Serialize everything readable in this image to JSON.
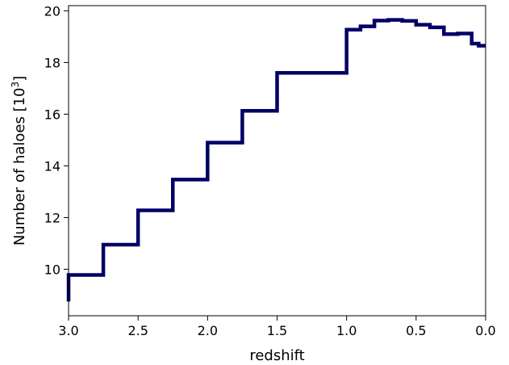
{
  "chart_data": {
    "type": "line",
    "subtype": "step",
    "xlabel": "redshift",
    "ylabel": {
      "prefix": "Number of haloes [10",
      "superscript": "3",
      "suffix": "]"
    },
    "xlim": [
      3.0,
      0.0
    ],
    "ylim": [
      8.2,
      20.2
    ],
    "x_inverted": true,
    "grid": false,
    "legend": "none",
    "x_ticks": [
      3.0,
      2.5,
      2.0,
      1.5,
      1.0,
      0.5,
      0.0
    ],
    "x_tick_labels": [
      "3.0",
      "2.5",
      "2.0",
      "1.5",
      "1.0",
      "0.5",
      "0.0"
    ],
    "y_ticks": [
      10,
      12,
      14,
      16,
      18,
      20
    ],
    "y_tick_labels": [
      "10",
      "12",
      "14",
      "16",
      "18",
      "20"
    ],
    "line_color": "#000066",
    "series": [
      {
        "x": [
          3.0,
          2.75,
          2.5,
          2.25,
          2.0,
          1.75,
          1.5,
          1.0,
          0.9,
          0.8,
          0.7,
          0.6,
          0.5,
          0.4,
          0.3,
          0.2,
          0.1,
          0.05,
          0.0
        ],
        "y": [
          9.78,
          10.95,
          12.28,
          13.47,
          14.9,
          16.13,
          17.6,
          19.27,
          19.4,
          19.62,
          19.65,
          19.61,
          19.46,
          19.36,
          19.1,
          19.12,
          18.73,
          18.65,
          18.65
        ],
        "start": {
          "x": 3.0,
          "y": 8.75
        }
      }
    ]
  }
}
